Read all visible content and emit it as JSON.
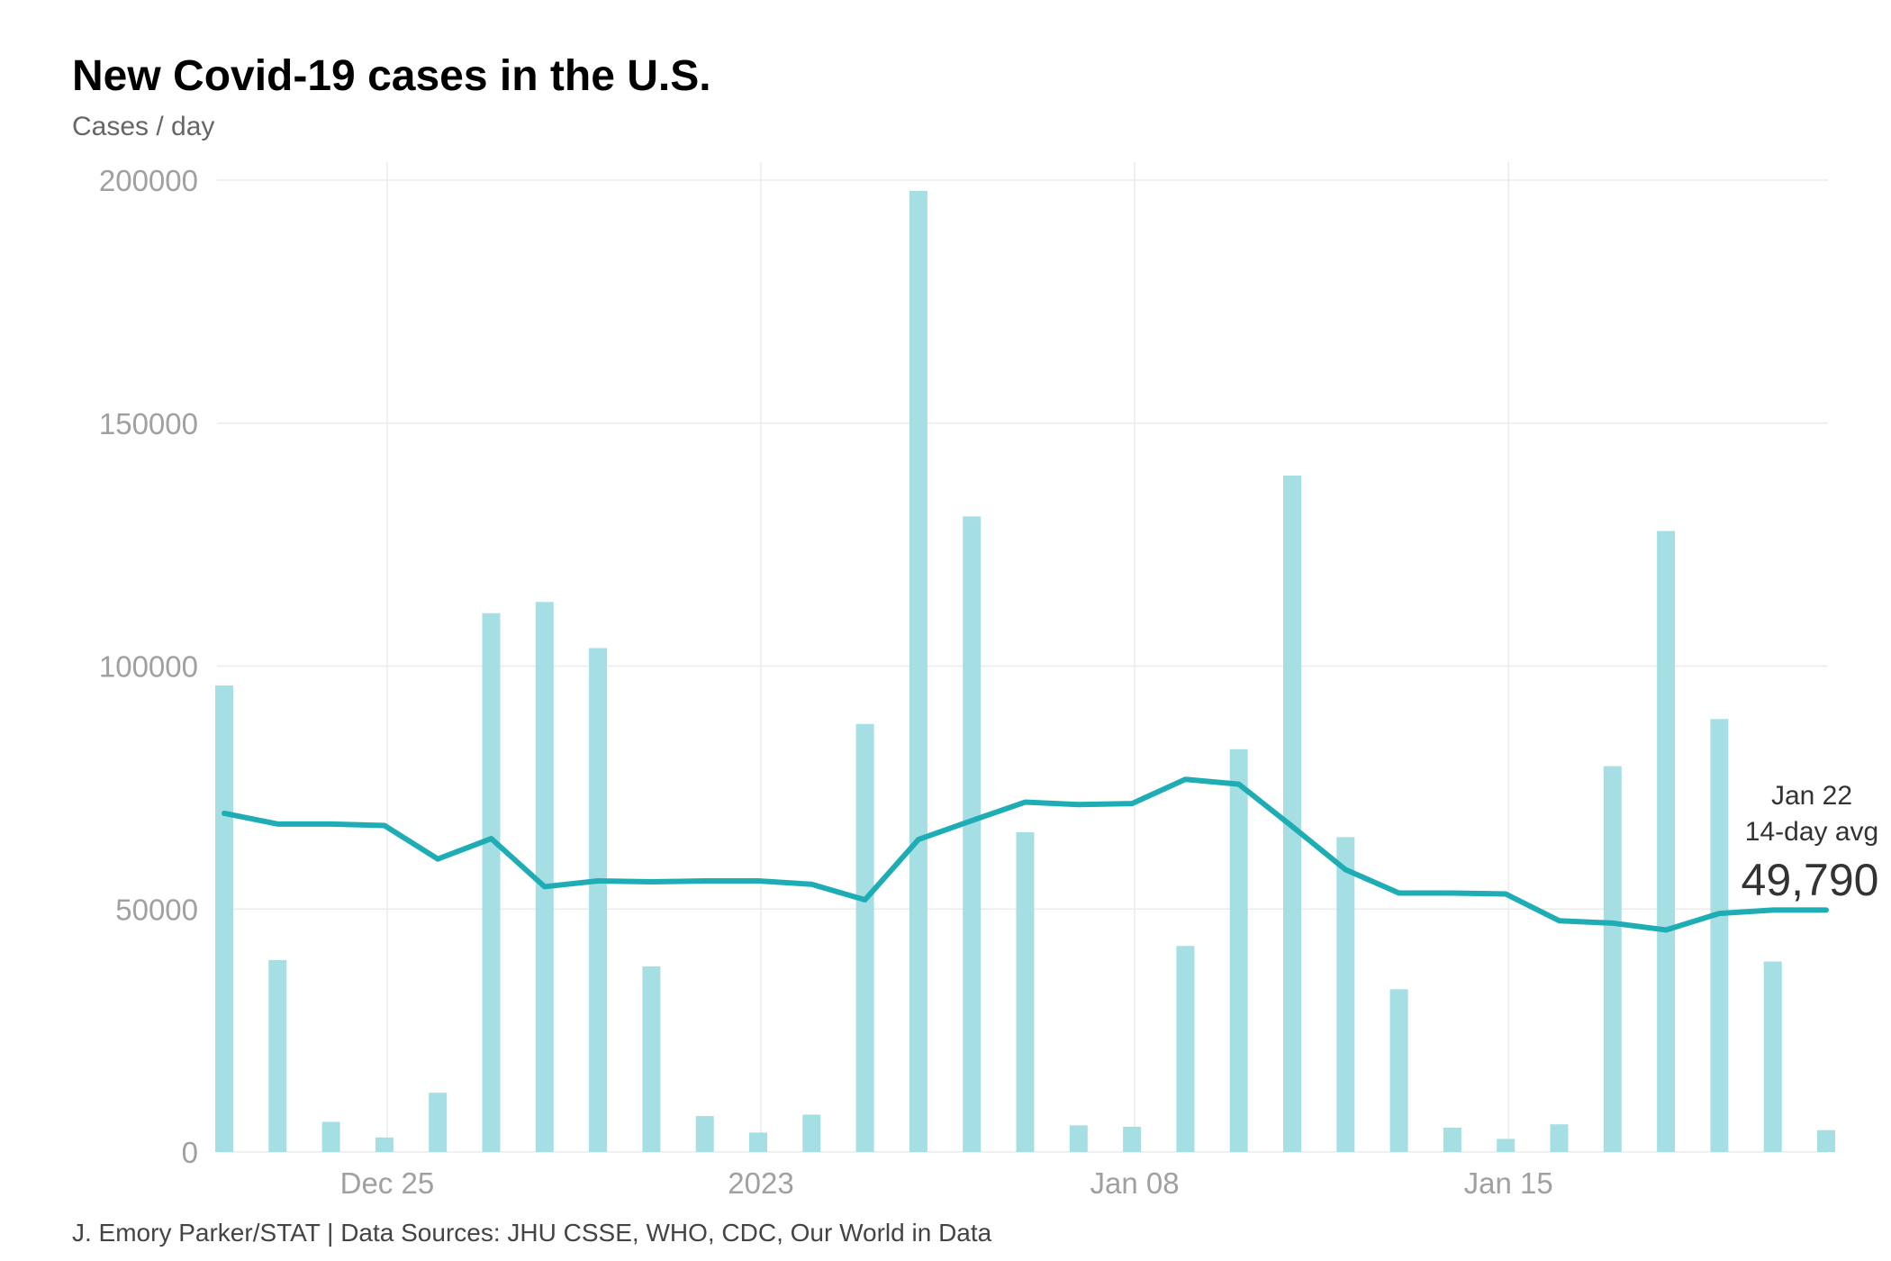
{
  "chart_data": {
    "type": "bar",
    "title": "New Covid-19 cases in the U.S.",
    "subtitle": "Cases / day",
    "xlabel": "",
    "ylabel": "",
    "ylim": [
      0,
      200000
    ],
    "grid": true,
    "yticks": [
      "0",
      "50000",
      "100000",
      "150000",
      "200000"
    ],
    "yticks_values": [
      0,
      50000,
      100000,
      150000,
      200000
    ],
    "xticks": [
      {
        "label": "Dec 25",
        "date": "2022-12-25"
      },
      {
        "label": "2023",
        "date": "2023-01-01"
      },
      {
        "label": "Jan 08",
        "date": "2023-01-08"
      },
      {
        "label": "Jan 15",
        "date": "2023-01-15"
      }
    ],
    "x": [
      "2022-12-22",
      "2022-12-23",
      "2022-12-24",
      "2022-12-25",
      "2022-12-26",
      "2022-12-27",
      "2022-12-28",
      "2022-12-29",
      "2022-12-30",
      "2022-12-31",
      "2023-01-01",
      "2023-01-02",
      "2023-01-03",
      "2023-01-04",
      "2023-01-05",
      "2023-01-06",
      "2023-01-07",
      "2023-01-08",
      "2023-01-09",
      "2023-01-10",
      "2023-01-11",
      "2023-01-12",
      "2023-01-13",
      "2023-01-14",
      "2023-01-15",
      "2023-01-16",
      "2023-01-17",
      "2023-01-18",
      "2023-01-19",
      "2023-01-20",
      "2023-01-21"
    ],
    "series": [
      {
        "type": "bar",
        "color": "#a6dfe3",
        "values": [
          96000,
          39500,
          6200,
          3000,
          12200,
          110900,
          113200,
          103700,
          38200,
          7400,
          4000,
          7700,
          88100,
          197800,
          130800,
          65800,
          5500,
          5200,
          42400,
          82900,
          139200,
          64800,
          33500,
          5000,
          2700,
          5700,
          79400,
          127800,
          89100,
          39200,
          4500
        ]
      },
      {
        "type": "line",
        "color": "#1fadb5",
        "values": [
          69700,
          67500,
          67500,
          67200,
          60300,
          64500,
          54600,
          55800,
          55600,
          55800,
          55800,
          55100,
          51900,
          64300,
          68200,
          72000,
          71500,
          71700,
          76700,
          75700,
          67000,
          58100,
          53300,
          53300,
          53100,
          47600,
          47100,
          45700,
          49100,
          49800,
          49790
        ]
      }
    ],
    "annotation": {
      "date_label": "Jan 22",
      "label": "14-day avg",
      "value": "49,790"
    },
    "footer": "J. Emory Parker/STAT | Data Sources: JHU CSSE, WHO, CDC, Our World in Data"
  }
}
